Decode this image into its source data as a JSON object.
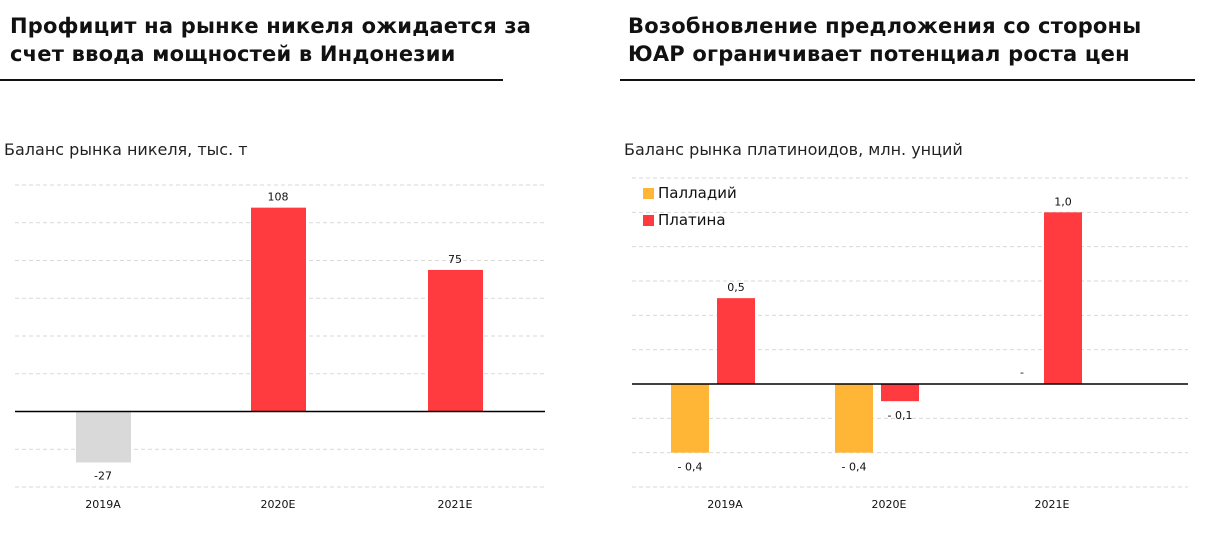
{
  "left": {
    "title_line1": "Профицит на рынке никеля ожидается за",
    "title_line2": "счет ввода мощностей в Индонезии",
    "subtitle": "Баланс рынка никеля, тыс. т"
  },
  "right": {
    "title_line1": "Возобновление предложения со стороны",
    "title_line2": "ЮАР ограничивает потенциал роста цен",
    "subtitle": "Баланс рынка платиноидов, млн. унций"
  },
  "chart_data": [
    {
      "type": "bar",
      "title": "Баланс рынка никеля, тыс. т",
      "categories": [
        "2019A",
        "2020E",
        "2021E"
      ],
      "series": [
        {
          "name": "Баланс",
          "values": [
            -27,
            108,
            75
          ],
          "labels": [
            "-27",
            "108",
            "75"
          ],
          "colors": [
            "#d9d9d9",
            "#ff3b3f",
            "#ff3b3f"
          ]
        }
      ],
      "ylim": [
        -40,
        120
      ],
      "grid": true
    },
    {
      "type": "bar",
      "title": "Баланс рынка платиноидов, млн. унций",
      "categories": [
        "2019A",
        "2020E",
        "2021E"
      ],
      "series": [
        {
          "name": "Палладий",
          "color": "#ffb636",
          "values": [
            -0.4,
            -0.4,
            0
          ],
          "labels": [
            "- 0,4",
            "- 0,4",
            "-"
          ]
        },
        {
          "name": "Платина",
          "color": "#ff3b3f",
          "values": [
            0.5,
            -0.1,
            1.0
          ],
          "labels": [
            "0,5",
            "- 0,1",
            "1,0"
          ]
        }
      ],
      "ylim": [
        -0.6,
        1.2
      ],
      "grid": true,
      "legend": "top-left"
    }
  ]
}
